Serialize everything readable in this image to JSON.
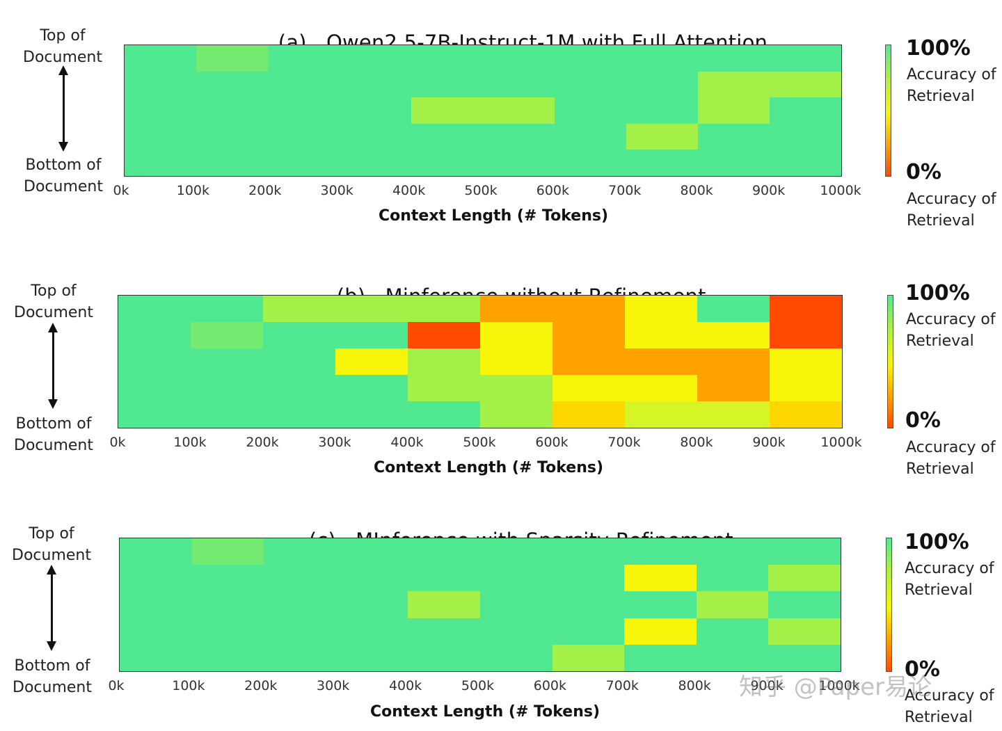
{
  "colors": {
    "green": "#50e991",
    "light_green": "#74ea70",
    "yellow_green": "#a3f049",
    "lime": "#d6f527",
    "yellow": "#f7f50a",
    "gold": "#ffd700",
    "orange": "#ffa200",
    "red_orange": "#ff4a00"
  },
  "colorbar": {
    "max_label": "100%",
    "min_label": "0%",
    "caption": "Accuracy of\nRetrieval"
  },
  "watermark": "知乎 @Paper易论",
  "chart_data": [
    {
      "type": "heatmap",
      "title_prefix": "(a)",
      "title": "Qwen2.5-7B-Instruct-1M with Full Attention",
      "xlabel": "Context Length (# Tokens)",
      "ylabel_top": "Top of\nDocument",
      "ylabel_bottom": "Bottom of\nDocument",
      "x_ticks": [
        "0k",
        "100k",
        "200k",
        "300k",
        "400k",
        "500k",
        "600k",
        "700k",
        "800k",
        "900k",
        "1000k"
      ],
      "depth_rows": 5,
      "grid": [
        [
          "green",
          "light_green",
          "green",
          "green",
          "green",
          "green",
          "green",
          "green",
          "green",
          "green"
        ],
        [
          "green",
          "green",
          "green",
          "green",
          "green",
          "green",
          "green",
          "green",
          "yellow_green",
          "yellow_green"
        ],
        [
          "green",
          "green",
          "green",
          "green",
          "yellow_green",
          "yellow_green",
          "green",
          "green",
          "yellow_green",
          "green"
        ],
        [
          "green",
          "green",
          "green",
          "green",
          "green",
          "green",
          "green",
          "yellow_green",
          "green",
          "green"
        ],
        [
          "green",
          "green",
          "green",
          "green",
          "green",
          "green",
          "green",
          "green",
          "green",
          "green"
        ]
      ]
    },
    {
      "type": "heatmap",
      "title_prefix": "(b)",
      "title": "Minference without Refinement",
      "xlabel": "Context Length (# Tokens)",
      "ylabel_top": "Top of\nDocument",
      "ylabel_bottom": "Bottom of\nDocument",
      "x_ticks": [
        "0k",
        "100k",
        "200k",
        "300k",
        "400k",
        "500k",
        "600k",
        "700k",
        "800k",
        "900k",
        "1000k"
      ],
      "depth_rows": 5,
      "grid": [
        [
          "green",
          "green",
          "yellow_green",
          "yellow_green",
          "yellow_green",
          "orange",
          "orange",
          "yellow",
          "green",
          "red_orange"
        ],
        [
          "green",
          "light_green",
          "green",
          "green",
          "red_orange",
          "yellow",
          "orange",
          "yellow",
          "yellow",
          "red_orange"
        ],
        [
          "green",
          "green",
          "green",
          "yellow",
          "yellow_green",
          "yellow",
          "orange",
          "orange",
          "orange",
          "yellow"
        ],
        [
          "green",
          "green",
          "green",
          "green",
          "yellow_green",
          "yellow_green",
          "yellow",
          "yellow",
          "orange",
          "yellow"
        ],
        [
          "green",
          "green",
          "green",
          "green",
          "green",
          "yellow_green",
          "gold",
          "lime",
          "lime",
          "gold"
        ]
      ]
    },
    {
      "type": "heatmap",
      "title_prefix": "(c)",
      "title": "MInference with Sparsity Refinement",
      "xlabel": "Context Length (# Tokens)",
      "ylabel_top": "Top of\nDocument",
      "ylabel_bottom": "Bottom of\nDocument",
      "x_ticks": [
        "0k",
        "100k",
        "200k",
        "300k",
        "400k",
        "500k",
        "600k",
        "700k",
        "800k",
        "900k",
        "1000k"
      ],
      "depth_rows": 5,
      "grid": [
        [
          "green",
          "light_green",
          "green",
          "green",
          "green",
          "green",
          "green",
          "green",
          "green",
          "green"
        ],
        [
          "green",
          "green",
          "green",
          "green",
          "green",
          "green",
          "green",
          "yellow",
          "green",
          "yellow_green"
        ],
        [
          "green",
          "green",
          "green",
          "green",
          "yellow_green",
          "green",
          "green",
          "green",
          "yellow_green",
          "green"
        ],
        [
          "green",
          "green",
          "green",
          "green",
          "green",
          "green",
          "green",
          "yellow",
          "green",
          "yellow_green"
        ],
        [
          "green",
          "green",
          "green",
          "green",
          "green",
          "green",
          "yellow_green",
          "green",
          "green",
          "green"
        ]
      ]
    }
  ]
}
